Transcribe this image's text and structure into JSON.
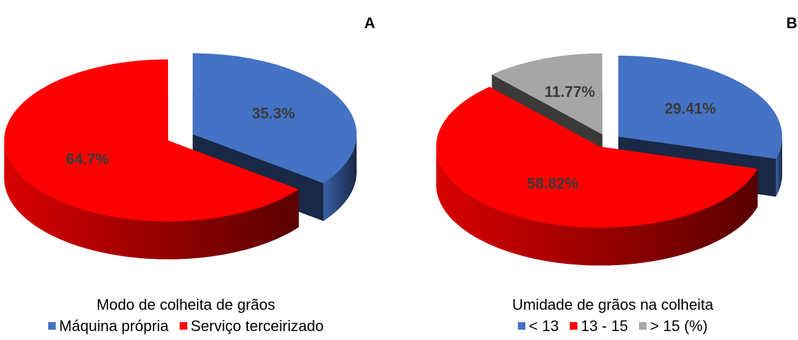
{
  "chart_data": [
    {
      "type": "pie",
      "title": "A",
      "legend_title": "Modo de colheita de grãos",
      "categories": [
        "Máquina própria",
        "Serviço terceirizado"
      ],
      "values": [
        35.3,
        64.7
      ],
      "value_labels": [
        "35.3%",
        "64.7%"
      ],
      "colors": [
        "#4472c4",
        "#ff0000"
      ]
    },
    {
      "type": "pie",
      "title": "B",
      "legend_title": "Umidade de grãos na colheita",
      "categories": [
        "< 13",
        "13 - 15",
        "> 15 (%)"
      ],
      "values": [
        29.41,
        58.82,
        11.77
      ],
      "value_labels": [
        "29.41%",
        "58.82%",
        "11.77%"
      ],
      "colors": [
        "#4472c4",
        "#ff0000",
        "#a6a6a6"
      ]
    }
  ]
}
